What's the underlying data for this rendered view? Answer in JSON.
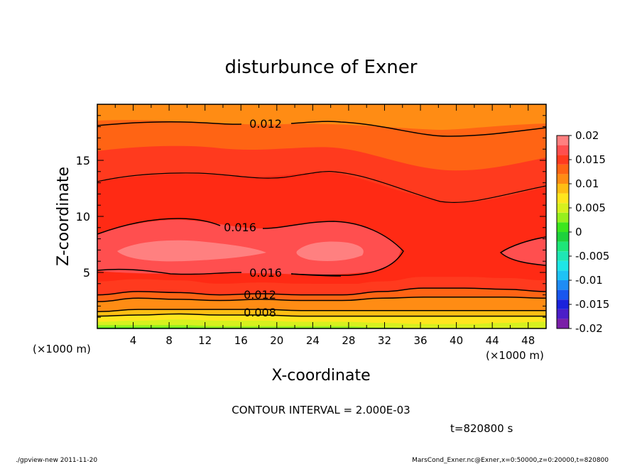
{
  "chart_data": {
    "type": "heatmap",
    "title": "disturbunce of Exner",
    "xlabel": "X-coordinate",
    "ylabel": "Z-coordinate",
    "x_unit_left": "(×1000 m)",
    "x_unit_right": "(×1000 m)",
    "xlim": [
      0,
      50
    ],
    "ylim": [
      0,
      20
    ],
    "x_ticks": [
      "4",
      "8",
      "12",
      "16",
      "20",
      "24",
      "28",
      "32",
      "36",
      "40",
      "44",
      "48"
    ],
    "y_ticks": [
      "5",
      "10",
      "15"
    ],
    "colorbar": {
      "ticks": [
        "0.02",
        "0.015",
        "0.01",
        "0.005",
        "0",
        "-0.005",
        "-0.01",
        "-0.015",
        "-0.02"
      ],
      "levels": [
        {
          "from": -0.02,
          "to": -0.018,
          "color": "#7a1fa8"
        },
        {
          "from": -0.018,
          "to": -0.016,
          "color": "#4b1ec8"
        },
        {
          "from": -0.016,
          "to": -0.014,
          "color": "#1a22dc"
        },
        {
          "from": -0.014,
          "to": -0.012,
          "color": "#1856ee"
        },
        {
          "from": -0.012,
          "to": -0.01,
          "color": "#1e8cf5"
        },
        {
          "from": -0.01,
          "to": -0.008,
          "color": "#1ec2f5"
        },
        {
          "from": -0.008,
          "to": -0.006,
          "color": "#1ee6e6"
        },
        {
          "from": -0.006,
          "to": -0.004,
          "color": "#1ee6b4"
        },
        {
          "from": -0.004,
          "to": -0.002,
          "color": "#1ee678"
        },
        {
          "from": -0.002,
          "to": 0.0,
          "color": "#1ed23c"
        },
        {
          "from": 0.0,
          "to": 0.002,
          "color": "#3ce61e"
        },
        {
          "from": 0.002,
          "to": 0.004,
          "color": "#96f01e"
        },
        {
          "from": 0.004,
          "to": 0.006,
          "color": "#d7f01e"
        },
        {
          "from": 0.006,
          "to": 0.008,
          "color": "#ffe61e"
        },
        {
          "from": 0.008,
          "to": 0.01,
          "color": "#ffbe14"
        },
        {
          "from": 0.01,
          "to": 0.012,
          "color": "#ff8c14"
        },
        {
          "from": 0.012,
          "to": 0.014,
          "color": "#ff6414"
        },
        {
          "from": 0.014,
          "to": 0.016,
          "color": "#ff3a1e"
        },
        {
          "from": 0.016,
          "to": 0.018,
          "color": "#ff4f4f"
        },
        {
          "from": 0.018,
          "to": 0.02,
          "color": "#ff8080"
        }
      ]
    },
    "field_bands": [
      {
        "value": 0.002,
        "color": "#96f01e",
        "z": [
          0.3,
          0.3,
          0.3,
          0.2,
          0.2,
          0.2,
          0.2,
          0.1,
          0.0,
          0.0,
          0.0,
          0.0
        ]
      },
      {
        "value": 0.004,
        "color": "#d7f01e",
        "z": [
          0.6,
          0.7,
          0.8,
          0.7,
          0.7,
          0.6,
          0.6,
          0.5,
          0.4,
          0.4,
          0.5,
          0.6
        ]
      },
      {
        "value": 0.006,
        "color": "#ffe61e",
        "z": [
          1.1,
          1.2,
          1.3,
          1.2,
          1.2,
          1.1,
          1.1,
          1.1,
          1.1,
          1.1,
          1.1,
          1.1
        ]
      },
      {
        "value": 0.008,
        "color": "#ffbe14",
        "z": [
          1.5,
          1.7,
          1.7,
          1.7,
          1.7,
          1.6,
          1.6,
          1.6,
          1.6,
          1.6,
          1.6,
          1.6
        ]
      },
      {
        "value": 0.01,
        "color": "#ff8c14",
        "z": [
          2.4,
          2.7,
          2.6,
          2.5,
          2.6,
          2.5,
          2.5,
          2.7,
          2.8,
          2.8,
          2.8,
          2.7
        ]
      },
      {
        "value": 0.012,
        "color": "#ff6414",
        "z": [
          3.0,
          3.3,
          3.2,
          3.0,
          3.1,
          3.0,
          3.0,
          3.3,
          3.6,
          3.6,
          3.5,
          3.3
        ]
      },
      {
        "value": 0.014,
        "color": "#ff3a1e",
        "z": [
          4.2,
          4.4,
          4.3,
          4.0,
          4.1,
          4.0,
          3.9,
          4.2,
          4.6,
          4.6,
          4.5,
          4.3
        ]
      }
    ],
    "contours": [
      {
        "value": 0.006,
        "label": "",
        "z": [
          1.1,
          1.2,
          1.3,
          1.2,
          1.2,
          1.1,
          1.1,
          1.1,
          1.1,
          1.1,
          1.1,
          1.1
        ]
      },
      {
        "value": 0.008,
        "label": "0.008",
        "z": [
          1.5,
          1.7,
          1.7,
          1.7,
          1.7,
          1.6,
          1.6,
          1.6,
          1.6,
          1.6,
          1.6,
          1.6
        ]
      },
      {
        "value": 0.01,
        "label": "",
        "z": [
          2.4,
          2.7,
          2.6,
          2.5,
          2.6,
          2.5,
          2.5,
          2.7,
          2.8,
          2.8,
          2.8,
          2.7
        ]
      },
      {
        "value": 0.012,
        "label": "0.012",
        "z": [
          3.0,
          3.3,
          3.2,
          3.0,
          3.1,
          3.0,
          3.0,
          3.3,
          3.6,
          3.6,
          3.5,
          3.3
        ]
      },
      {
        "value": 0.016,
        "label": "0.016",
        "z": [
          5.1,
          5.0,
          4.8,
          4.9,
          4.8,
          4.7,
          4.7,
          5.0
        ]
      },
      {
        "value": 0.016,
        "label": "0.016",
        "z": [
          8.3,
          9.6,
          9.7,
          9.1,
          8.9,
          8.9,
          8.7,
          7.6
        ]
      },
      {
        "value": 0.014,
        "label": "",
        "z": [
          13.0,
          13.7,
          13.6,
          12.9,
          13.3,
          13.8,
          13.0,
          11.0,
          11.2,
          12.6
        ]
      },
      {
        "value": 0.012,
        "label": "0.012",
        "z": [
          18.0,
          18.3,
          18.2,
          17.8,
          17.6,
          17.8,
          17.7,
          17.1,
          17.2,
          18.0
        ]
      }
    ]
  },
  "footer": {
    "contour_interval": "CONTOUR INTERVAL = 2.000E-03",
    "time": "t=820800 s",
    "left_note": "./gpview-new  2011-11-20",
    "right_note": "MarsCond_Exner.nc@Exner,x=0:50000,z=0:20000,t=820800"
  }
}
